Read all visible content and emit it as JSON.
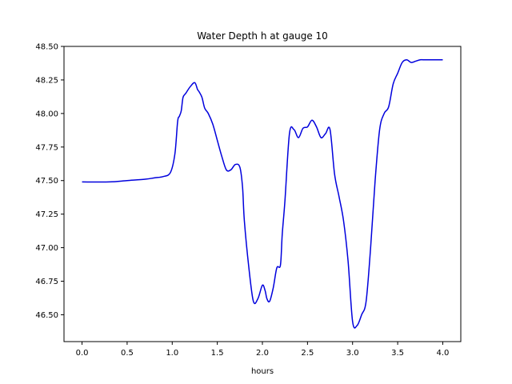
{
  "chart_data": {
    "type": "line",
    "title": "Water Depth h at gauge 10",
    "xlabel": "hours",
    "ylabel": "",
    "xlim": [
      -0.2,
      4.2
    ],
    "ylim": [
      46.3,
      48.5
    ],
    "xticks": [
      0.0,
      0.5,
      1.0,
      1.5,
      2.0,
      2.5,
      3.0,
      3.5,
      4.0
    ],
    "xtick_labels": [
      "0.0",
      "0.5",
      "1.0",
      "1.5",
      "2.0",
      "2.5",
      "3.0",
      "3.5",
      "4.0"
    ],
    "yticks": [
      46.5,
      46.75,
      47.0,
      47.25,
      47.5,
      47.75,
      48.0,
      48.25,
      48.5
    ],
    "ytick_labels": [
      "46.50",
      "46.75",
      "47.00",
      "47.25",
      "47.50",
      "47.75",
      "48.00",
      "48.25",
      "48.50"
    ],
    "grid": false,
    "series": [
      {
        "color": "#0000dd",
        "x": [
          0.0,
          0.3,
          0.5,
          0.7,
          0.8,
          0.9,
          0.98,
          1.03,
          1.06,
          1.08,
          1.1,
          1.12,
          1.15,
          1.2,
          1.25,
          1.28,
          1.3,
          1.33,
          1.36,
          1.4,
          1.45,
          1.5,
          1.55,
          1.6,
          1.65,
          1.7,
          1.75,
          1.78,
          1.8,
          1.85,
          1.9,
          1.95,
          2.0,
          2.03,
          2.05,
          2.08,
          2.12,
          2.16,
          2.2,
          2.22,
          2.25,
          2.3,
          2.35,
          2.4,
          2.45,
          2.5,
          2.55,
          2.6,
          2.65,
          2.7,
          2.75,
          2.8,
          2.85,
          2.9,
          2.95,
          3.0,
          3.05,
          3.1,
          3.15,
          3.2,
          3.25,
          3.3,
          3.35,
          3.4,
          3.45,
          3.5,
          3.55,
          3.6,
          3.65,
          3.7,
          3.75,
          3.8,
          3.85,
          3.9,
          3.95,
          4.0
        ],
        "y": [
          47.49,
          47.49,
          47.5,
          47.51,
          47.52,
          47.53,
          47.56,
          47.7,
          47.94,
          47.98,
          48.02,
          48.12,
          48.15,
          48.2,
          48.23,
          48.18,
          48.16,
          48.12,
          48.04,
          48.0,
          47.92,
          47.8,
          47.68,
          47.58,
          47.58,
          47.62,
          47.6,
          47.45,
          47.2,
          46.85,
          46.6,
          46.62,
          46.72,
          46.68,
          46.62,
          46.6,
          46.7,
          46.85,
          46.87,
          47.1,
          47.35,
          47.85,
          47.88,
          47.82,
          47.89,
          47.9,
          47.95,
          47.9,
          47.82,
          47.85,
          47.88,
          47.55,
          47.38,
          47.2,
          46.9,
          46.45,
          46.42,
          46.5,
          46.6,
          47.0,
          47.5,
          47.88,
          48.0,
          48.05,
          48.22,
          48.3,
          48.38,
          48.4,
          48.38,
          48.39,
          48.4,
          48.4,
          48.4,
          48.4,
          48.4,
          48.4
        ]
      }
    ]
  }
}
